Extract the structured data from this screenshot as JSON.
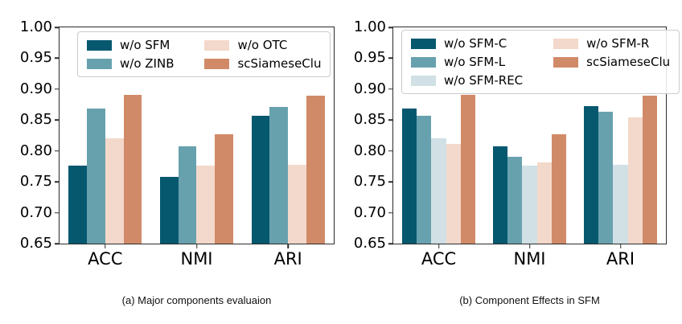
{
  "figure": {
    "background": "#ffffff",
    "text_color": "#000000",
    "spine_color": "#2b2b2b"
  },
  "chart_data": [
    {
      "type": "bar",
      "caption": "(a) Major components evaluaion",
      "categories": [
        "ACC",
        "NMI",
        "ARI"
      ],
      "series": [
        {
          "name": "w/o SFM",
          "color": "#06586f",
          "values": [
            0.776,
            0.758,
            0.857
          ]
        },
        {
          "name": "w/o ZINB",
          "color": "#68a1ae",
          "values": [
            0.868,
            0.808,
            0.871
          ]
        },
        {
          "name": "w/o OTC",
          "color": "#f3d9cb",
          "values": [
            0.821,
            0.776,
            0.778
          ]
        },
        {
          "name": "scSiameseClu",
          "color": "#d18a67",
          "values": [
            0.891,
            0.827,
            0.889
          ]
        }
      ],
      "ylim": [
        0.65,
        1.0
      ],
      "yticks": [
        "1.00",
        "0.95",
        "0.90",
        "0.85",
        "0.80",
        "0.75",
        "0.70",
        "0.65"
      ],
      "xlabel": "",
      "ylabel": "",
      "grid": false,
      "legend_position": "upper left",
      "legend_columns": 2
    },
    {
      "type": "bar",
      "caption": "(b) Component Effects in SFM",
      "categories": [
        "ACC",
        "NMI",
        "ARI"
      ],
      "series": [
        {
          "name": "w/o SFM-C",
          "color": "#06586f",
          "values": [
            0.868,
            0.808,
            0.872
          ]
        },
        {
          "name": "w/o SFM-L",
          "color": "#68a1ae",
          "values": [
            0.857,
            0.79,
            0.864
          ]
        },
        {
          "name": "w/o SFM-REC",
          "color": "#d0e0e4",
          "values": [
            0.821,
            0.776,
            0.778
          ]
        },
        {
          "name": "w/o SFM-R",
          "color": "#f3d9cb",
          "values": [
            0.812,
            0.782,
            0.854
          ]
        },
        {
          "name": "scSiameseClu",
          "color": "#d18a67",
          "values": [
            0.891,
            0.827,
            0.889
          ]
        }
      ],
      "ylim": [
        0.65,
        1.0
      ],
      "yticks": [
        "1.00",
        "0.95",
        "0.90",
        "0.85",
        "0.80",
        "0.75",
        "0.70",
        "0.65"
      ],
      "xlabel": "",
      "ylabel": "",
      "grid": false,
      "legend_position": "upper left",
      "legend_columns": 2
    }
  ]
}
